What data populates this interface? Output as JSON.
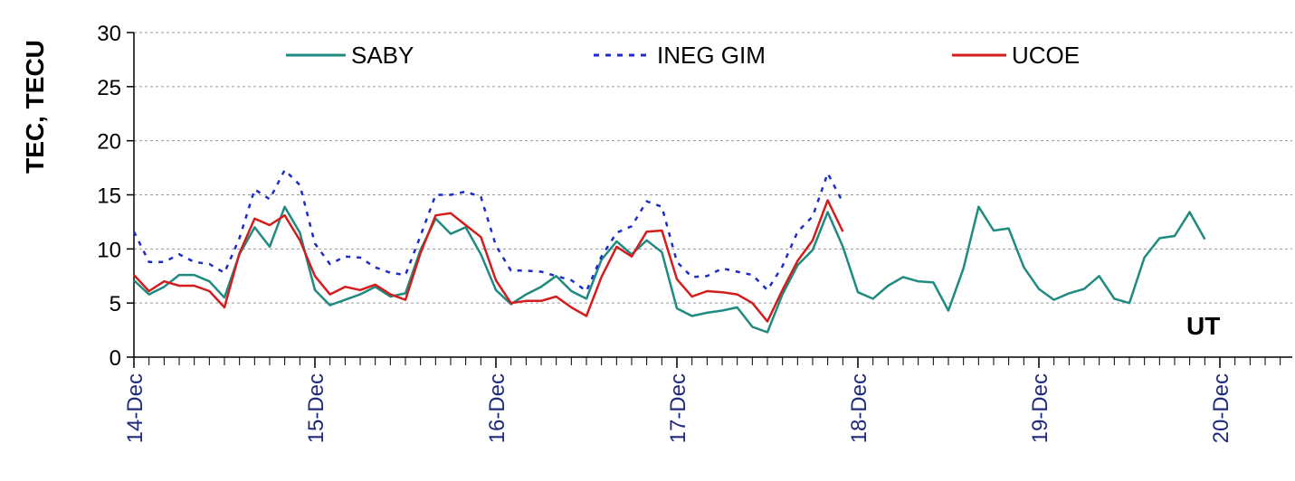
{
  "chart_data": {
    "type": "line",
    "ylabel": "TEC, TECU",
    "xlabel": "UT",
    "ylim": [
      0,
      30
    ],
    "yticks": [
      0,
      5,
      10,
      15,
      20,
      25,
      30
    ],
    "xlim_days": [
      0,
      6.4
    ],
    "xtick_labels": [
      "14-Dec",
      "15-Dec",
      "16-Dec",
      "17-Dec",
      "18-Dec",
      "19-Dec",
      "20-Dec"
    ],
    "grid": "horizontal dashed",
    "legend": "top",
    "series": [
      {
        "name": "SABY",
        "color": "#1f8a80",
        "style": "solid",
        "x": [
          0,
          0.083,
          0.167,
          0.25,
          0.333,
          0.417,
          0.5,
          0.583,
          0.667,
          0.75,
          0.833,
          0.917,
          1.0,
          1.083,
          1.167,
          1.25,
          1.333,
          1.417,
          1.5,
          1.583,
          1.667,
          1.75,
          1.833,
          1.917,
          2.0,
          2.083,
          2.167,
          2.25,
          2.333,
          2.417,
          2.5,
          2.583,
          2.667,
          2.75,
          2.833,
          2.917,
          3.0,
          3.083,
          3.167,
          3.25,
          3.333,
          3.417,
          3.5,
          3.583,
          3.667,
          3.75,
          3.833,
          3.917,
          4.0,
          4.083,
          4.167,
          4.25,
          4.333,
          4.417,
          4.5,
          4.583,
          4.667,
          4.75,
          4.833,
          4.917,
          5.0,
          5.083,
          5.167,
          5.25,
          5.333,
          5.417,
          5.5,
          5.583,
          5.667,
          5.75,
          5.833,
          5.917
        ],
        "y": [
          7.1,
          5.8,
          6.5,
          7.6,
          7.6,
          7.0,
          5.5,
          9.5,
          12.0,
          10.2,
          13.9,
          11.5,
          6.2,
          4.8,
          5.3,
          5.8,
          6.5,
          5.6,
          5.9,
          9.9,
          12.8,
          11.4,
          12.0,
          9.5,
          6.2,
          4.9,
          5.8,
          6.5,
          7.5,
          6.1,
          5.4,
          9.0,
          10.7,
          9.5,
          10.8,
          9.7,
          4.5,
          3.8,
          4.1,
          4.3,
          4.6,
          2.8,
          2.3,
          5.8,
          8.5,
          9.9,
          13.4,
          10.2,
          6.0,
          5.4,
          6.6,
          7.4,
          7.0,
          6.9,
          4.3,
          8.2,
          13.9,
          11.7,
          11.9,
          8.3,
          6.3,
          5.3,
          5.9,
          6.3,
          7.5,
          5.4,
          5.0,
          9.2,
          11.0,
          11.2,
          13.4,
          10.9
        ]
      },
      {
        "name": "INEG GIM",
        "color": "#1c2bc9",
        "style": "dotted",
        "x": [
          0,
          0.083,
          0.167,
          0.25,
          0.333,
          0.417,
          0.5,
          0.583,
          0.667,
          0.75,
          0.833,
          0.917,
          1.0,
          1.083,
          1.167,
          1.25,
          1.333,
          1.417,
          1.5,
          1.583,
          1.667,
          1.75,
          1.833,
          1.917,
          2.0,
          2.083,
          2.167,
          2.25,
          2.333,
          2.417,
          2.5,
          2.583,
          2.667,
          2.75,
          2.833,
          2.917,
          3.0,
          3.083,
          3.167,
          3.25,
          3.333,
          3.417,
          3.5,
          3.583,
          3.667,
          3.75,
          3.833,
          3.917
        ],
        "y": [
          11.6,
          8.8,
          8.8,
          9.5,
          8.8,
          8.6,
          7.8,
          11.0,
          15.5,
          14.6,
          17.3,
          15.9,
          10.5,
          8.6,
          9.3,
          9.2,
          8.3,
          7.8,
          7.6,
          11.2,
          15.0,
          15.0,
          15.3,
          14.8,
          10.3,
          8.0,
          8.0,
          7.9,
          7.5,
          7.1,
          6.1,
          9.3,
          11.5,
          12.1,
          14.4,
          13.9,
          8.8,
          7.4,
          7.5,
          8.2,
          7.9,
          7.6,
          6.2,
          8.4,
          11.6,
          13.0,
          17.0,
          14.3
        ]
      },
      {
        "name": "UCOE",
        "color": "#d41c1c",
        "style": "solid",
        "x": [
          0,
          0.083,
          0.167,
          0.25,
          0.333,
          0.417,
          0.5,
          0.583,
          0.667,
          0.75,
          0.833,
          0.917,
          1.0,
          1.083,
          1.167,
          1.25,
          1.333,
          1.417,
          1.5,
          1.583,
          1.667,
          1.75,
          1.833,
          1.917,
          2.0,
          2.083,
          2.167,
          2.25,
          2.333,
          2.417,
          2.5,
          2.583,
          2.667,
          2.75,
          2.833,
          2.917,
          3.0,
          3.083,
          3.167,
          3.25,
          3.333,
          3.417,
          3.5,
          3.583,
          3.667,
          3.75,
          3.833,
          3.917
        ],
        "y": [
          7.6,
          6.1,
          7.0,
          6.6,
          6.6,
          6.1,
          4.6,
          9.6,
          12.8,
          12.2,
          13.1,
          10.8,
          7.5,
          5.8,
          6.5,
          6.2,
          6.7,
          5.8,
          5.3,
          9.6,
          13.1,
          13.3,
          12.2,
          11.1,
          7.1,
          5.0,
          5.2,
          5.2,
          5.6,
          4.6,
          3.8,
          7.4,
          10.2,
          9.3,
          11.6,
          11.7,
          7.2,
          5.6,
          6.1,
          6.0,
          5.8,
          5.0,
          3.3,
          6.2,
          8.9,
          10.8,
          14.5,
          11.6
        ]
      }
    ]
  }
}
